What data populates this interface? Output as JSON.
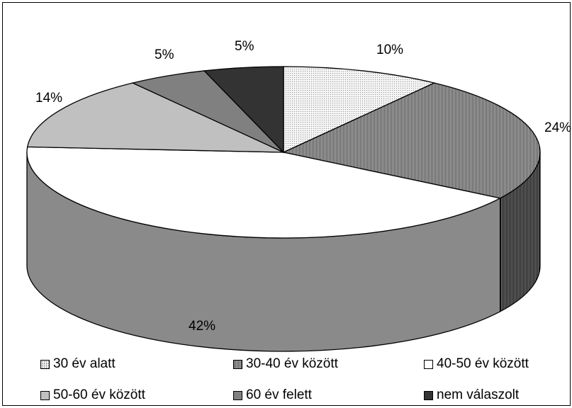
{
  "chart_data": {
    "type": "pie",
    "style": "3d-exploded-none",
    "slices": [
      {
        "label": "30 év alatt",
        "value": 10,
        "value_label": "10%",
        "fill": "dots",
        "color": "#f4f4f4"
      },
      {
        "label": "30-40 év között",
        "value": 24,
        "value_label": "24%",
        "fill": "vertical-lines",
        "color": "#9a9a9a"
      },
      {
        "label": "40-50 év között",
        "value": 42,
        "value_label": "42%",
        "fill": "solid",
        "color": "#ffffff"
      },
      {
        "label": "50-60 év között",
        "value": 14,
        "value_label": "14%",
        "fill": "solid",
        "color": "#c0c0c0"
      },
      {
        "label": "60 év felett",
        "value": 5,
        "value_label": "5%",
        "fill": "solid",
        "color": "#808080"
      },
      {
        "label": "nem válaszolt",
        "value": 5,
        "value_label": "5%",
        "fill": "solid",
        "color": "#333333"
      }
    ],
    "legend_position": "bottom"
  }
}
